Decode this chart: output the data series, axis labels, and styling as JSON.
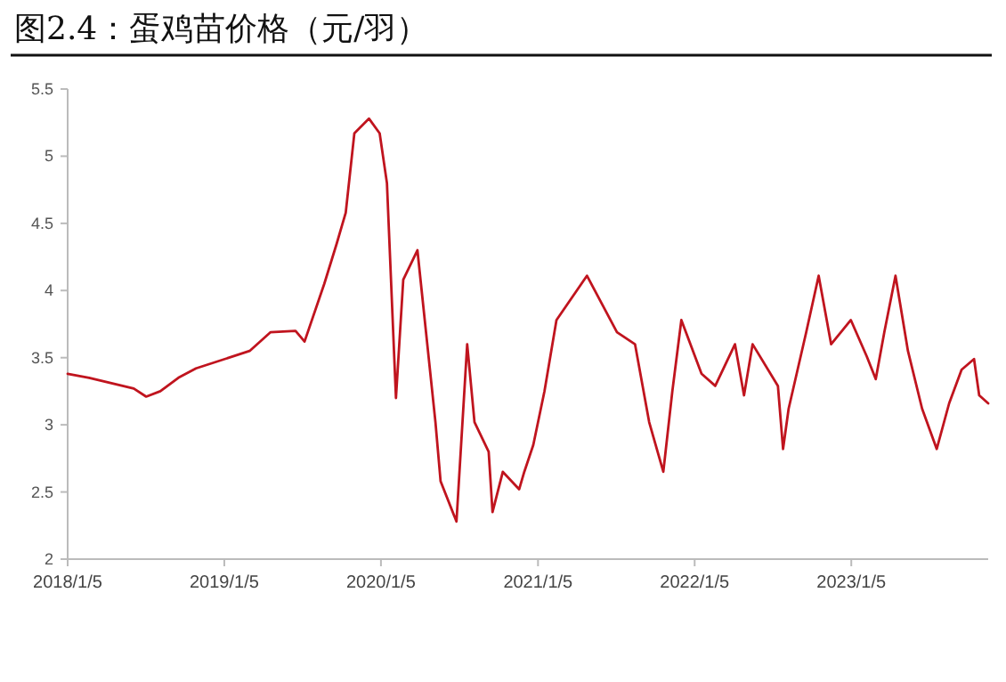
{
  "chart_data": {
    "type": "line",
    "title": "图2.4：蛋鸡苗价格（元/羽）",
    "x": [
      "2018-01-05",
      "2018-02-24",
      "2018-06-08",
      "2018-07-07",
      "2018-08-09",
      "2018-09-20",
      "2018-10-31",
      "2019-03-05",
      "2019-04-23",
      "2019-06-20",
      "2019-07-11",
      "2019-08-26",
      "2019-09-24",
      "2019-10-15",
      "2019-11-04",
      "2019-12-08",
      "2020-01-02",
      "2020-01-19",
      "2020-02-09",
      "2020-02-26",
      "2020-03-30",
      "2020-05-11",
      "2020-05-23",
      "2020-06-29",
      "2020-07-24",
      "2020-08-10",
      "2020-09-12",
      "2020-09-21",
      "2020-10-15",
      "2020-11-22",
      "2020-12-04",
      "2020-12-25",
      "2021-01-20",
      "2021-02-17",
      "2021-04-29",
      "2021-07-08",
      "2021-08-19",
      "2021-09-21",
      "2021-10-24",
      "2021-11-14",
      "2021-12-05",
      "2022-01-21",
      "2022-02-22",
      "2022-04-09",
      "2022-04-30",
      "2022-05-20",
      "2022-07-18",
      "2022-07-30",
      "2022-08-12",
      "2022-09-22",
      "2022-10-21",
      "2022-11-19",
      "2023-01-04",
      "2023-02-10",
      "2023-03-03",
      "2023-03-23",
      "2023-04-18",
      "2023-05-17",
      "2023-06-19",
      "2023-07-23",
      "2023-08-21",
      "2023-09-19",
      "2023-10-18",
      "2023-10-30",
      "2023-11-20"
    ],
    "series": [
      {
        "color": "#c0141e",
        "values": [
          3.38,
          3.35,
          3.27,
          3.21,
          3.25,
          3.35,
          3.42,
          3.55,
          3.69,
          3.7,
          3.62,
          4.05,
          4.35,
          4.58,
          5.17,
          5.28,
          5.17,
          4.8,
          3.2,
          4.08,
          4.3,
          3.02,
          2.58,
          2.28,
          3.6,
          3.02,
          2.8,
          2.35,
          2.65,
          2.52,
          2.65,
          2.85,
          3.25,
          3.78,
          4.11,
          3.69,
          3.6,
          3.02,
          2.65,
          3.25,
          3.78,
          3.38,
          3.29,
          3.6,
          3.22,
          3.6,
          3.29,
          2.82,
          3.12,
          3.69,
          4.11,
          3.6,
          3.78,
          3.51,
          3.34,
          3.69,
          4.11,
          3.55,
          3.12,
          2.82,
          3.16,
          3.41,
          3.49,
          3.22,
          3.16
        ]
      }
    ],
    "xlim": [
      "2018-01-05",
      "2023-11-20"
    ],
    "xticks": [
      {
        "value": "2018-01-05",
        "label": "2018/1/5"
      },
      {
        "value": "2019-01-05",
        "label": "2019/1/5"
      },
      {
        "value": "2020-01-05",
        "label": "2020/1/5"
      },
      {
        "value": "2021-01-05",
        "label": "2021/1/5"
      },
      {
        "value": "2022-01-05",
        "label": "2022/1/5"
      },
      {
        "value": "2023-01-05",
        "label": "2023/1/5"
      }
    ],
    "ylim": [
      2,
      5.5
    ],
    "yticks": [
      2,
      2.5,
      3,
      3.5,
      4,
      4.5,
      5,
      5.5
    ],
    "grid": false,
    "marker": "none",
    "line_style": "solid"
  }
}
